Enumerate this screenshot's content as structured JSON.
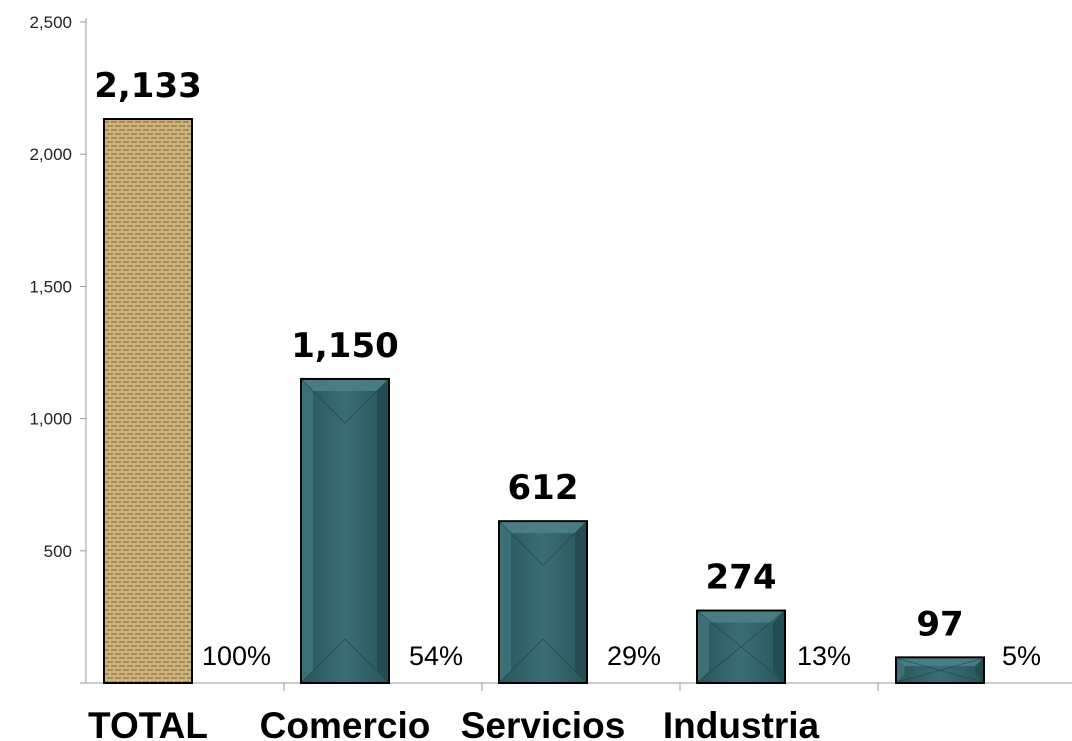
{
  "chart_data": {
    "type": "bar",
    "categories": [
      "TOTAL",
      "Comercio",
      "Servicios",
      "Industria",
      ""
    ],
    "values": [
      2133,
      1150,
      612,
      274,
      97
    ],
    "value_labels": [
      "2,133",
      "1,150",
      "612",
      "274",
      "97"
    ],
    "percent_labels": [
      "100%",
      "54%",
      "29%",
      "13%",
      "5%"
    ],
    "ylim": [
      0,
      2500
    ],
    "yticks": [
      500,
      1000,
      1500,
      2000,
      2500
    ],
    "ytick_labels": [
      "500",
      "1,000",
      "1,500",
      "2,000",
      "2,500"
    ],
    "title": "",
    "xlabel": "",
    "ylabel": "",
    "grid": false,
    "colors": {
      "total_bar": "#c8a868",
      "sector_bar": "#2f5f66",
      "sector_bar_light": "#4d8088",
      "axis": "#999999"
    }
  }
}
